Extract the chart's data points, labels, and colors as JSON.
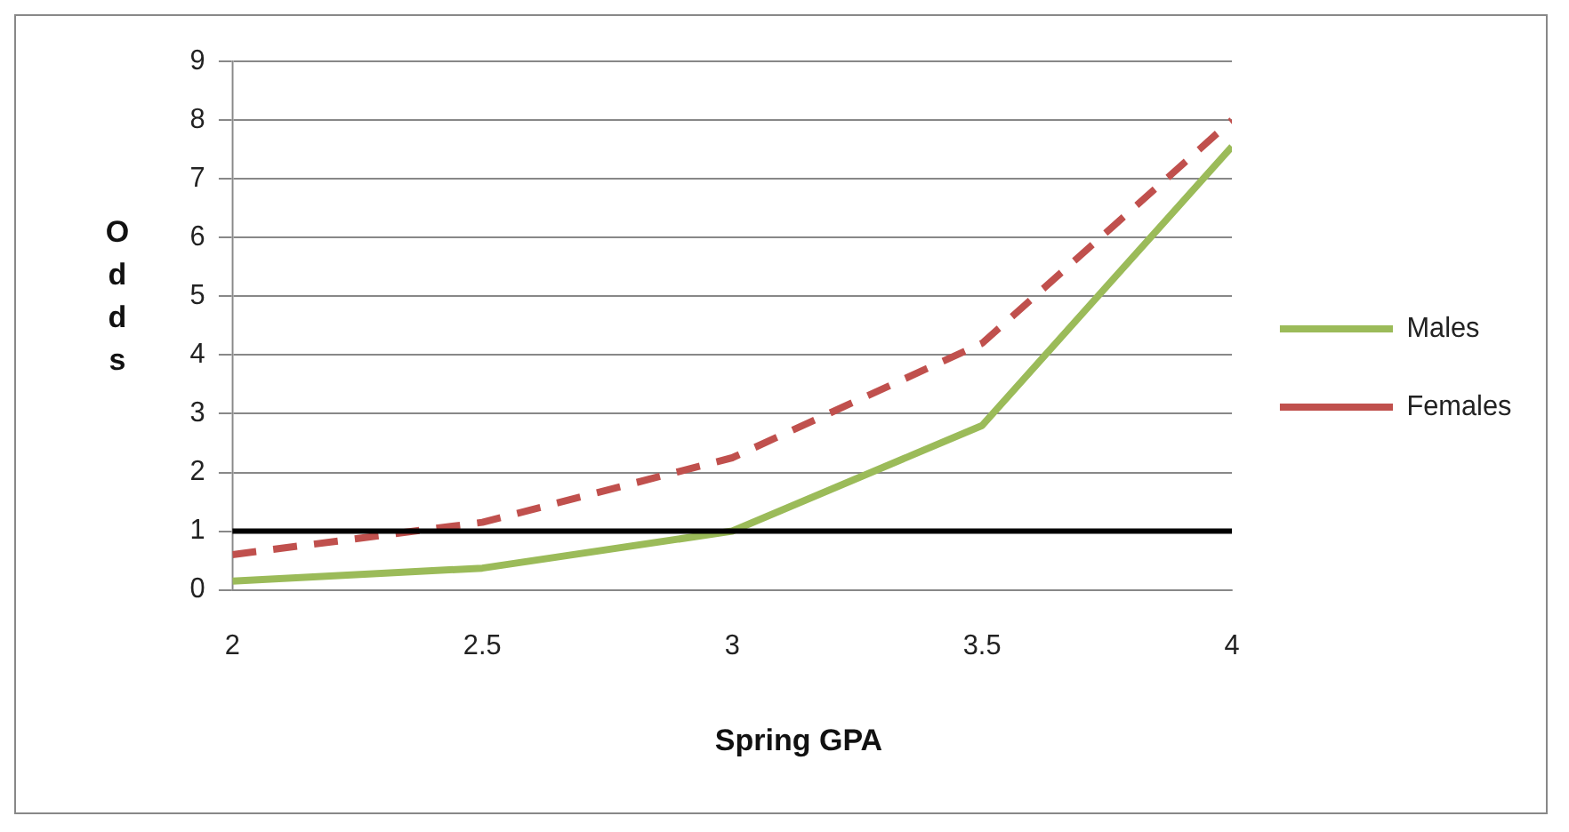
{
  "chart_data": {
    "type": "line",
    "xlabel": "Spring GPA",
    "ylabel": "Odds",
    "x": [
      2,
      2.5,
      3,
      3.5,
      4
    ],
    "series": [
      {
        "name": "Males",
        "color": "#9bbb59",
        "values": [
          0.15,
          0.37,
          1.0,
          2.8,
          7.55
        ],
        "line_style": "solid"
      },
      {
        "name": "Females",
        "color": "#c0504d",
        "values": [
          0.6,
          1.15,
          2.25,
          4.2,
          8.0
        ],
        "line_style": "dashed"
      }
    ],
    "xlim": [
      2,
      4
    ],
    "xticks": [
      2,
      2.5,
      3,
      3.5,
      4
    ],
    "ylim": [
      0,
      9
    ],
    "yticks": [
      0,
      1,
      2,
      3,
      4,
      5,
      6,
      7,
      8,
      9
    ],
    "ref_lines": [
      {
        "axis": "y",
        "value": 1,
        "color": "#000000"
      }
    ],
    "grid": "y",
    "legend": "right",
    "marker": "none"
  }
}
